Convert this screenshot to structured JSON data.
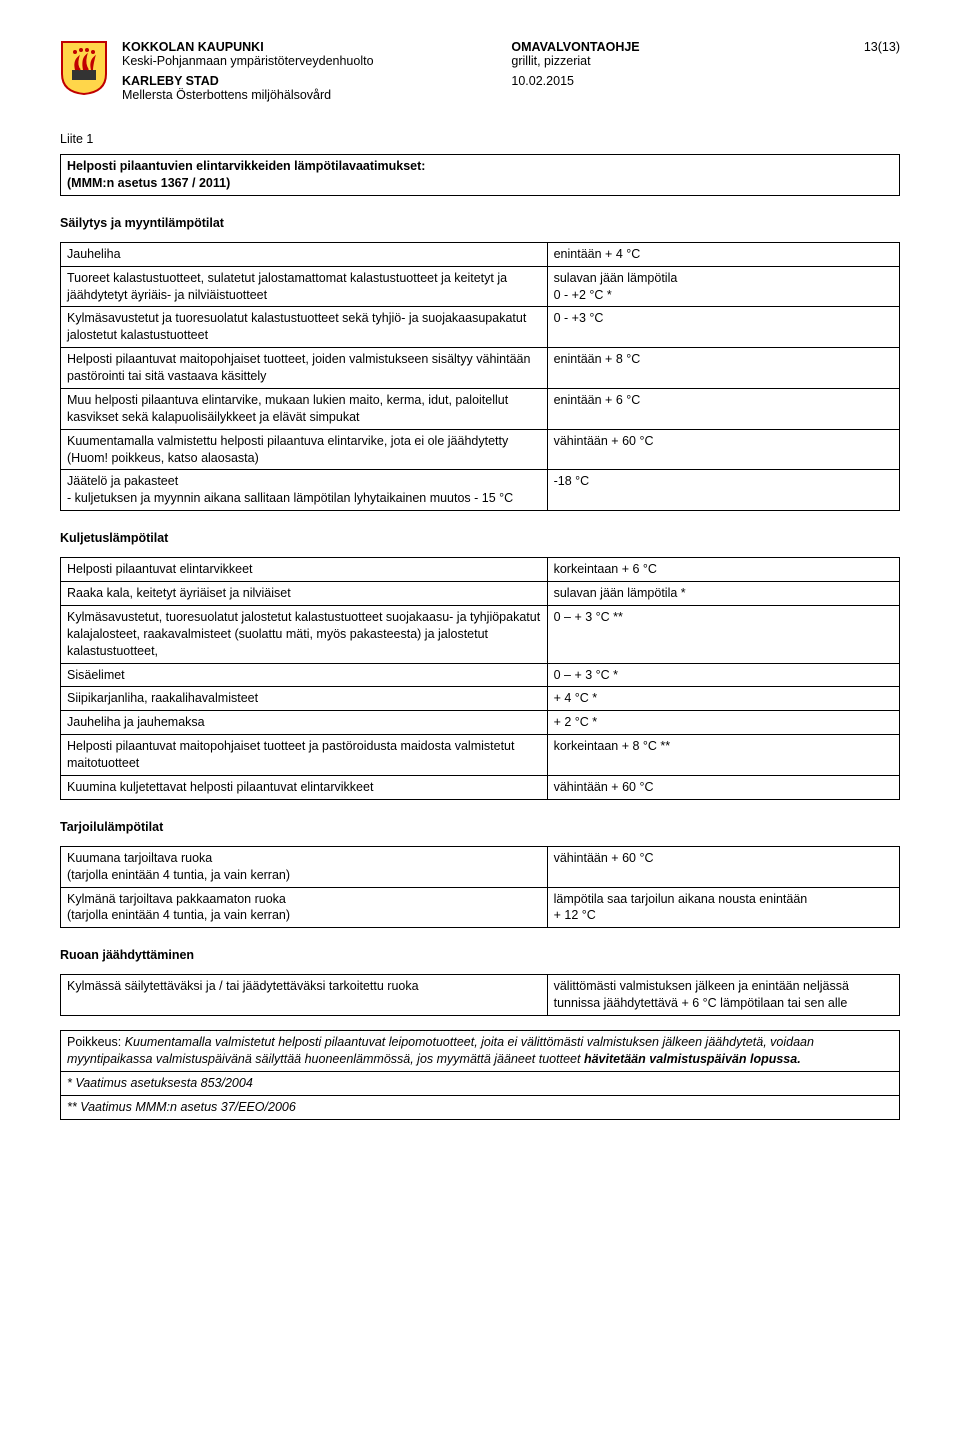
{
  "header": {
    "org_fi": "KOKKOLAN KAUPUNKI",
    "org_fi_sub": "Keski-Pohjanmaan ympäristöterveydenhuolto",
    "org_sv": "KARLEBY STAD",
    "org_sv_sub": "Mellersta Österbottens miljöhälsovård",
    "doc_type": "OMAVALVONTAOHJE",
    "doc_scope": "grillit, pizzeriat",
    "date": "10.02.2015",
    "page": "13(13)"
  },
  "crest": {
    "shield_fill": "#ffd64a",
    "shield_stroke": "#c00000",
    "flame": "#c00000",
    "pot": "#333333"
  },
  "liite_label": "Liite 1",
  "box_title_line1": "Helposti pilaantuvien elintarvikkeiden lämpötilavaatimukset:",
  "box_title_line2": "(MMM:n asetus 1367 / 2011)",
  "sec1_title": "Säilytys ja myyntilämpötilat",
  "t1": [
    {
      "l": "Jauheliha",
      "r": "enintään + 4 °C"
    },
    {
      "l": "Tuoreet kalastustuotteet, sulatetut jalostamattomat kalastustuotteet ja keitetyt ja jäähdytetyt äyriäis- ja nilviäistuotteet",
      "r": "sulavan jään lämpötila\n0 - +2 °C *"
    },
    {
      "l": "Kylmäsavustetut ja tuoresuolatut kalastustuotteet sekä tyhjiö- ja suojakaasupakatut jalostetut kalastustuotteet",
      "r": "0 - +3 °C"
    },
    {
      "l": "Helposti pilaantuvat maitopohjaiset tuotteet, joiden valmistukseen sisältyy vähintään pastörointi tai sitä vastaava käsittely",
      "r": "enintään + 8 °C"
    },
    {
      "l": "Muu helposti pilaantuva elintarvike, mukaan lukien maito, kerma, idut, paloitellut kasvikset sekä kalapuolisäilykkeet ja elävät simpukat",
      "r": "enintään + 6 °C"
    },
    {
      "l": "Kuumentamalla valmistettu helposti pilaantuva elintarvike, jota ei ole jäähdytetty (Huom! poikkeus, katso alaosasta)",
      "r": "vähintään + 60 °C"
    },
    {
      "l": "Jäätelö ja pakasteet\n- kuljetuksen ja myynnin aikana sallitaan lämpötilan lyhytaikainen muutos - 15 °C",
      "r": "-18 °C"
    }
  ],
  "sec2_title": "Kuljetuslämpötilat",
  "t2": [
    {
      "l": "Helposti pilaantuvat elintarvikkeet",
      "r": "korkeintaan + 6 °C"
    },
    {
      "l": "Raaka kala, keitetyt äyriäiset ja nilviäiset",
      "r": "sulavan jään lämpötila *"
    },
    {
      "l": "Kylmäsavustetut, tuoresuolatut jalostetut kalastustuotteet suojakaasu- ja tyhjiöpakatut kalajalosteet, raakavalmisteet (suolattu mäti, myös pakasteesta) ja jalostetut kalastustuotteet,",
      "r": "0 – + 3 °C **"
    },
    {
      "l": "Sisäelimet",
      "r": "0 – + 3 °C *"
    },
    {
      "l": "Siipikarjanliha, raakalihavalmisteet",
      "r": "+ 4 °C *"
    },
    {
      "l": "Jauheliha ja jauhemaksa",
      "r": "+ 2 °C *"
    },
    {
      "l": "Helposti pilaantuvat maitopohjaiset tuotteet ja pastöroidusta maidosta valmistetut maitotuotteet",
      "r": "korkeintaan + 8 °C **"
    },
    {
      "l": "Kuumina kuljetettavat helposti pilaantuvat elintarvikkeet",
      "r": "vähintään + 60 °C"
    }
  ],
  "sec3_title": "Tarjoilulämpötilat",
  "t3": [
    {
      "l": "Kuumana tarjoiltava ruoka\n(tarjolla enintään 4 tuntia, ja vain kerran)",
      "r": "vähintään + 60 °C"
    },
    {
      "l": "Kylmänä tarjoiltava pakkaamaton ruoka\n(tarjolla enintään 4 tuntia, ja vain kerran)",
      "r": "lämpötila saa tarjoilun aikana nousta enintään\n+ 12 °C"
    }
  ],
  "sec4_title": "Ruoan jäähdyttäminen",
  "t4": [
    {
      "l": "Kylmässä säilytettäväksi ja / tai jäädytettäväksi tarkoitettu ruoka",
      "r": "välittömästi valmistuksen jälkeen ja enintään neljässä tunnissa jäähdytettävä + 6 °C lämpötilaan tai sen alle"
    }
  ],
  "footnote_exception_label": "Poikkeus:",
  "footnote_exception_body": " Kuumentamalla valmistetut helposti pilaantuvat leipomotuotteet, joita ei välittömästi valmistuksen jälkeen jäähdytetä, voidaan myyntipaikassa valmistuspäivänä säilyttää huoneenlämmössä, jos myymättä jääneet tuotteet ",
  "footnote_exception_bold": "hävitetään valmistuspäivän lopussa.",
  "footnote_star1": "* Vaatimus asetuksesta 853/2004",
  "footnote_star2": "** Vaatimus MMM:n asetus 37/EEO/2006"
}
